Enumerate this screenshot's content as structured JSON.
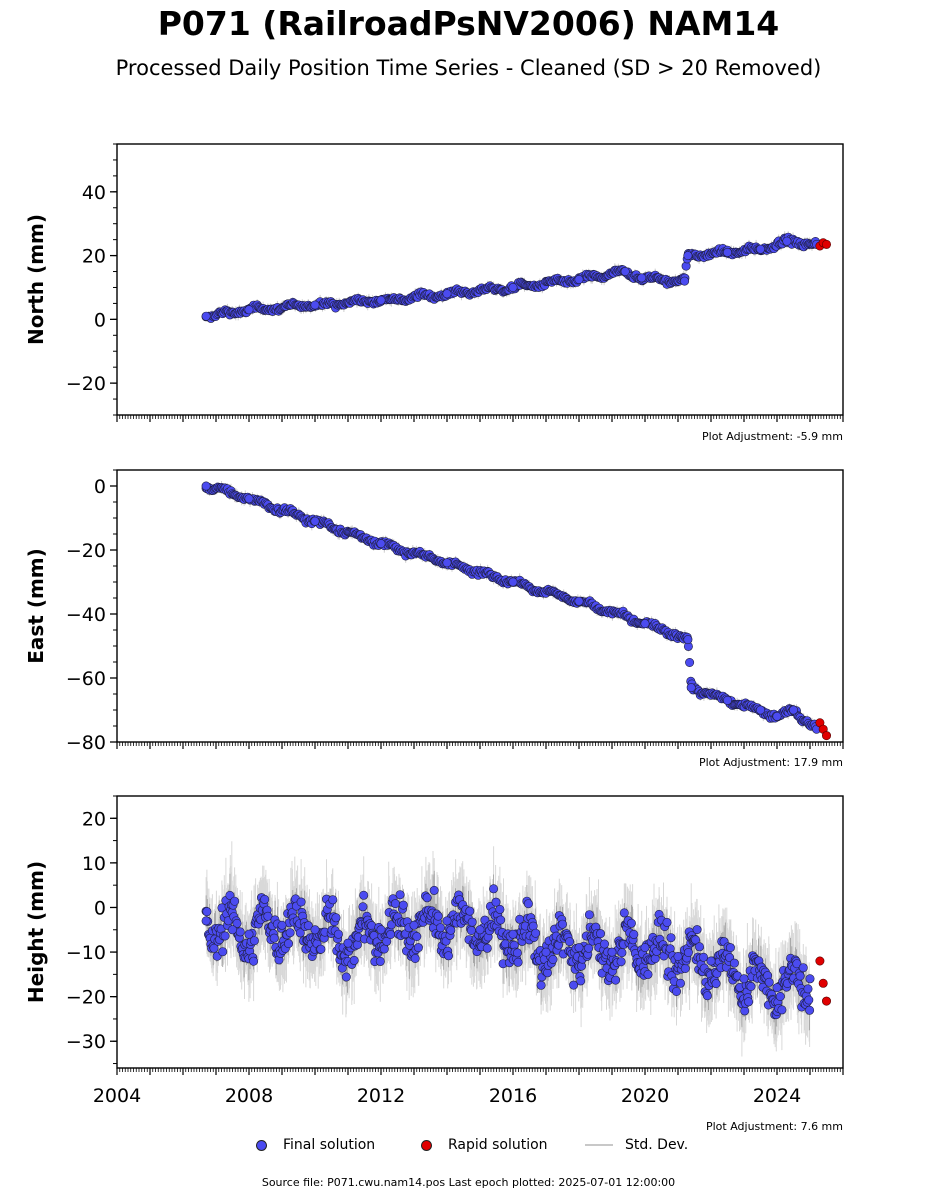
{
  "header": {
    "title": "P071 (RailroadPsNV2006) NAM14",
    "subtitle": "Processed Daily Position Time Series - Cleaned (SD > 20 Removed)"
  },
  "legend": {
    "final_label": "Final solution",
    "rapid_label": "Rapid solution",
    "std_label": "Std. Dev."
  },
  "colors": {
    "final": "#4b4bf0",
    "rapid": "#e00000",
    "std": "#c8c8c8",
    "marker_edge": "#1e1e3c"
  },
  "footer": {
    "text": "Source file: P071.cwu.nam14.pos  Last epoch plotted: 2025-07-01 12:00:00"
  },
  "chart_data": [
    {
      "type": "scatter",
      "ylabel": "North (mm)",
      "adjustment": "Plot Adjustment: -5.9 mm",
      "xlim": [
        2004,
        2026
      ],
      "ylim": [
        -30,
        55
      ],
      "yticks": [
        -20,
        0,
        20,
        40
      ],
      "ytick_labels": [
        "−20",
        "0",
        "20",
        "40"
      ],
      "show_xtick_labels": false,
      "series": [
        {
          "name": "Final solution",
          "kind": "final",
          "x": [
            2006.7,
            2008.0,
            2010.0,
            2012.0,
            2014.0,
            2016.0,
            2018.0,
            2019.4,
            2019.9,
            2021.2,
            2021.3,
            2022.5,
            2023.5,
            2024.3,
            2025.2
          ],
          "y": [
            1.0,
            3.0,
            4.5,
            6.0,
            8.0,
            10.0,
            12.5,
            15.0,
            13.0,
            12.0,
            20.0,
            21.0,
            22.0,
            24.5,
            23.5
          ]
        },
        {
          "name": "Rapid solution",
          "kind": "rapid",
          "x": [
            2025.3,
            2025.4,
            2025.5
          ],
          "y": [
            23.0,
            24.0,
            23.5
          ]
        }
      ]
    },
    {
      "type": "scatter",
      "ylabel": "East (mm)",
      "adjustment": "Plot Adjustment: 17.9 mm",
      "xlim": [
        2004,
        2026
      ],
      "ylim": [
        -80,
        5
      ],
      "yticks": [
        -80,
        -60,
        -40,
        -20,
        0
      ],
      "ytick_labels": [
        "−80",
        "−60",
        "−40",
        "−20",
        "0"
      ],
      "show_xtick_labels": false,
      "series": [
        {
          "name": "Final solution",
          "kind": "final",
          "x": [
            2006.7,
            2008.0,
            2010.0,
            2012.0,
            2014.0,
            2016.0,
            2018.0,
            2020.0,
            2021.3,
            2021.4,
            2022.5,
            2023.5,
            2024.0,
            2024.5,
            2025.2
          ],
          "y": [
            0.0,
            -4.0,
            -11.0,
            -18.0,
            -24.0,
            -30.0,
            -36.0,
            -43.0,
            -48.0,
            -63.0,
            -67.0,
            -70.0,
            -72.0,
            -70.0,
            -76.0
          ]
        },
        {
          "name": "Rapid solution",
          "kind": "rapid",
          "x": [
            2025.3,
            2025.4,
            2025.5
          ],
          "y": [
            -74.0,
            -76.0,
            -78.0
          ]
        }
      ]
    },
    {
      "type": "scatter",
      "ylabel": "Height (mm)",
      "adjustment": "Plot Adjustment: 7.6 mm",
      "xlim": [
        2004,
        2026
      ],
      "ylim": [
        -36,
        25
      ],
      "yticks": [
        -30,
        -20,
        -10,
        0,
        10,
        20
      ],
      "ytick_labels": [
        "−30",
        "−20",
        "−10",
        "0",
        "10",
        "20"
      ],
      "xticks": [
        2004,
        2008,
        2012,
        2016,
        2020,
        2024
      ],
      "xtick_labels": [
        "2004",
        "2008",
        "2012",
        "2016",
        "2020",
        "2024"
      ],
      "show_xtick_labels": true,
      "series": [
        {
          "name": "Final solution",
          "kind": "final",
          "x": [
            2006.7,
            2007.5,
            2008.0,
            2009.0,
            2010.0,
            2011.0,
            2012.0,
            2013.0,
            2014.0,
            2015.0,
            2016.0,
            2017.0,
            2018.0,
            2019.0,
            2020.0,
            2021.0,
            2022.0,
            2023.0,
            2024.0,
            2025.0
          ],
          "y": [
            -3.0,
            -5.0,
            -6.0,
            -4.0,
            -5.0,
            -8.0,
            -5.0,
            -4.0,
            -3.0,
            -5.0,
            -6.0,
            -10.0,
            -9.0,
            -10.0,
            -9.0,
            -11.0,
            -12.0,
            -16.0,
            -18.0,
            -16.0
          ]
        },
        {
          "name": "Rapid solution",
          "kind": "rapid",
          "x": [
            2025.3,
            2025.4,
            2025.5
          ],
          "y": [
            -12.0,
            -17.0,
            -21.0
          ]
        }
      ]
    }
  ]
}
